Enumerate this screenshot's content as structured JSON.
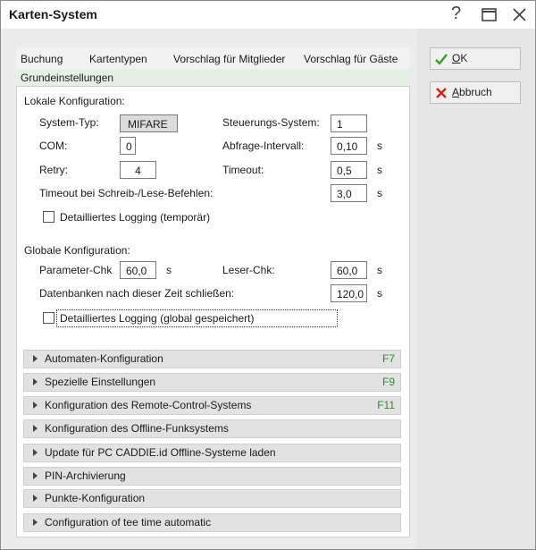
{
  "window": {
    "title": "Karten-System",
    "help": "?"
  },
  "tabs": [
    "Buchung",
    "Kartentypen",
    "Vorschlag für Mitglieder",
    "Vorschlag für Gäste",
    "Grundeinstellungen"
  ],
  "buttons": {
    "ok": "OK",
    "cancel": "Abbruch"
  },
  "local": {
    "heading": "Lokale Konfiguration:",
    "fields": [
      {
        "label": "System-Typ:",
        "value": "MIFARE"
      },
      {
        "label": "Steuerungs-System:",
        "value": "1"
      },
      {
        "label": "COM:",
        "value": "0"
      },
      {
        "label": "Abfrage-Intervall:",
        "value": "0,10",
        "unit": "s"
      },
      {
        "label": "Retry:",
        "value": "4"
      },
      {
        "label": "Timeout:",
        "value": "0,5",
        "unit": "s"
      },
      {
        "label": "Timeout bei Schreib-/Lese-Befehlen:",
        "value": "3,0",
        "unit": "s"
      }
    ],
    "checkbox": "Detailliertes Logging (temporär)"
  },
  "global": {
    "heading": "Globale Konfiguration:",
    "fields": [
      {
        "label": "Parameter-Chk",
        "value": "60,0",
        "unit": "s"
      },
      {
        "label": "Leser-Chk:",
        "value": "60,0",
        "unit": "s"
      },
      {
        "label": "Datenbanken nach dieser Zeit schließen:",
        "value": "120,0",
        "unit": "s"
      }
    ],
    "checkbox": "Detailliertes Logging (global gespeichert)"
  },
  "sections": [
    {
      "title": "Automaten-Konfiguration",
      "key": "F7"
    },
    {
      "title": "Spezielle Einstellungen",
      "key": "F9"
    },
    {
      "title": "Konfiguration des Remote-Control-Systems",
      "key": "F11"
    },
    {
      "title": "Konfiguration des Offline-Funksystems"
    },
    {
      "title": "Update für PC CADDIE.id Offline-Systeme laden"
    },
    {
      "title": "PIN-Archivierung"
    },
    {
      "title": "Punkte-Konfiguration"
    },
    {
      "title": "Configuration of tee time automatic"
    }
  ]
}
